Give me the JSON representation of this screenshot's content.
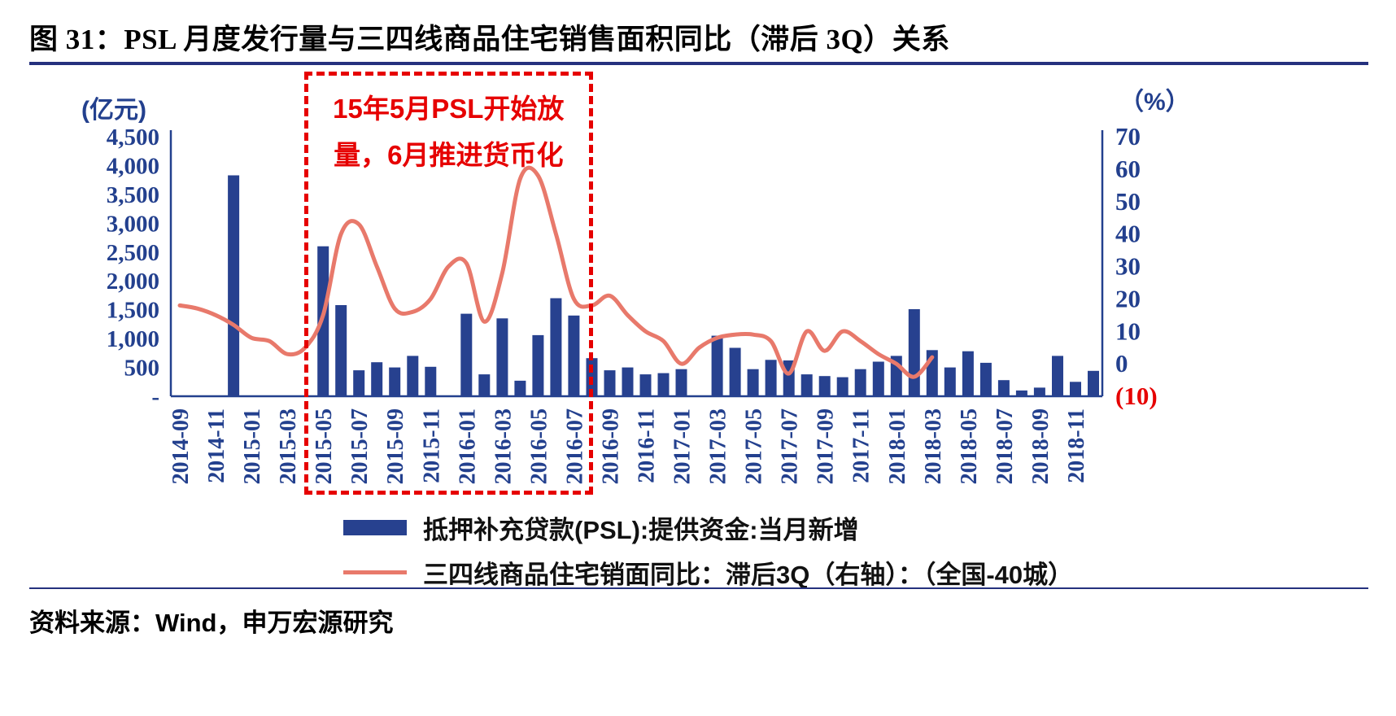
{
  "title": "图 31：PSL 月度发行量与三四线商品住宅销售面积同比（滞后 3Q）关系",
  "source": "资料来源：Wind，申万宏源研究",
  "colors": {
    "bar": "#27418f",
    "line": "#e8796b",
    "red": "#e60000",
    "axis": "#23408e",
    "rule": "#25317e"
  },
  "chart_data": {
    "type": "combo",
    "months": [
      "2014-09",
      "2014-10",
      "2014-11",
      "2014-12",
      "2015-01",
      "2015-02",
      "2015-03",
      "2015-04",
      "2015-05",
      "2015-06",
      "2015-07",
      "2015-08",
      "2015-09",
      "2015-10",
      "2015-11",
      "2015-12",
      "2016-01",
      "2016-02",
      "2016-03",
      "2016-04",
      "2016-05",
      "2016-06",
      "2016-07",
      "2016-08",
      "2016-09",
      "2016-10",
      "2016-11",
      "2016-12",
      "2017-01",
      "2017-02",
      "2017-03",
      "2017-04",
      "2017-05",
      "2017-06",
      "2017-07",
      "2017-08",
      "2017-09",
      "2017-10",
      "2017-11",
      "2017-12",
      "2018-01",
      "2018-02",
      "2018-03",
      "2018-04",
      "2018-05",
      "2018-06",
      "2018-07",
      "2018-08",
      "2018-09",
      "2018-10",
      "2018-11",
      "2018-12"
    ],
    "x_tick_labels": [
      "2014-09",
      "2014-11",
      "2015-01",
      "2015-03",
      "2015-05",
      "2015-07",
      "2015-09",
      "2015-11",
      "2016-01",
      "2016-03",
      "2016-05",
      "2016-07",
      "2016-09",
      "2016-11",
      "2017-01",
      "2017-03",
      "2017-05",
      "2017-07",
      "2017-09",
      "2017-11",
      "2018-01",
      "2018-03",
      "2018-05",
      "2018-07",
      "2018-09",
      "2018-11"
    ],
    "left_axis": {
      "unit": "(亿元)",
      "min": 0,
      "max": 4500,
      "step": 500,
      "tick_labels": [
        "4,500",
        "4,000",
        "3,500",
        "3,000",
        "2,500",
        "2,000",
        "1,500",
        "1,000",
        "500",
        "-"
      ]
    },
    "right_axis": {
      "unit": "（%）",
      "min": -10,
      "max": 70,
      "step": 10,
      "tick_labels": [
        "70",
        "60",
        "50",
        "40",
        "30",
        "20",
        "10",
        "0",
        "(10)"
      ]
    },
    "series": [
      {
        "name": "抵押补充贷款(PSL):提供资金:当月新增",
        "type": "bar",
        "axis": "left",
        "color": "#27418f",
        "values": [
          0,
          0,
          0,
          3830,
          0,
          0,
          0,
          0,
          2600,
          1580,
          450,
          590,
          500,
          700,
          510,
          0,
          1430,
          380,
          1350,
          270,
          1060,
          1700,
          1400,
          660,
          450,
          500,
          380,
          400,
          470,
          0,
          1050,
          840,
          470,
          630,
          620,
          380,
          350,
          330,
          470,
          600,
          700,
          1510,
          800,
          500,
          780,
          580,
          280,
          100,
          150,
          700,
          250,
          440
        ]
      },
      {
        "name": "三四线商品住宅销面同比：滞后3Q（右轴）：（全国-40城）",
        "type": "line",
        "axis": "right",
        "color": "#e8796b",
        "values": [
          18,
          17,
          15,
          12,
          8,
          7,
          3,
          5,
          15,
          40,
          43,
          30,
          17,
          16,
          20,
          30,
          31,
          13,
          28,
          57,
          58,
          40,
          20,
          18,
          21,
          15,
          10,
          7,
          0,
          5,
          8,
          9,
          9,
          7,
          -3,
          10,
          4,
          10,
          7,
          3,
          0,
          -4,
          2,
          null,
          null,
          null,
          null,
          null,
          null,
          null,
          null,
          null
        ]
      }
    ],
    "highlight_box": {
      "from": "2015-05",
      "to": "2016-08",
      "note": [
        "15年5月PSL开始放",
        "量，6月推进货币化"
      ]
    },
    "legend_position": "bottom",
    "grid": false
  }
}
